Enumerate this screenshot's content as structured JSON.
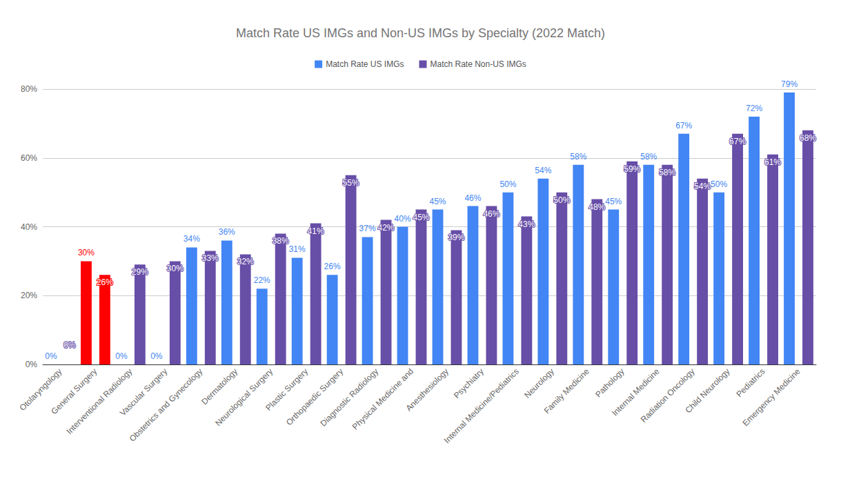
{
  "chart_data": {
    "type": "bar",
    "title": "Match Rate US IMGs and Non-US IMGs by Specialty (2022 Match)",
    "categories": [
      "Otolaryngology",
      "General Surgery",
      "Interventional Radiology",
      "Vascular Surgery",
      "Obstetrics and Gynecology",
      "Dermatology",
      "Neurological Surgery",
      "Plastic Surgery",
      "Orthopaedic Surgery",
      "Diagnostic Radiology",
      "Physical Medicine and",
      "Anesthesiology",
      "Psychiatry",
      "Internal Medicine/Pediatrics",
      "Neurology",
      "Family Medicine",
      "Pathology",
      "Internal Medicine",
      "Radiation Oncology",
      "Child Neurology",
      "Pediatrics",
      "Emergency Medicine"
    ],
    "series": [
      {
        "name": "Match Rate US IMGs",
        "color": "#4285f4",
        "colors": [
          "#4285f4",
          "#ff0000",
          "#4285f4",
          "#4285f4",
          "#4285f4",
          "#4285f4",
          "#4285f4",
          "#4285f4",
          "#4285f4",
          "#4285f4",
          "#4285f4",
          "#4285f4",
          "#4285f4",
          "#4285f4",
          "#4285f4",
          "#4285f4",
          "#4285f4",
          "#4285f4",
          "#4285f4",
          "#4285f4",
          "#4285f4",
          "#4285f4"
        ],
        "values": [
          0,
          30,
          0,
          0,
          34,
          36,
          22,
          31,
          26,
          37,
          40,
          45,
          46,
          50,
          54,
          58,
          45,
          58,
          67,
          50,
          72,
          79
        ],
        "value_labels": [
          "0%",
          "30%",
          "0%",
          "0%",
          "34%",
          "36%",
          "22%",
          "31%",
          "26%",
          "37%",
          "40%",
          "45%",
          "46%",
          "50%",
          "54%",
          "58%",
          "45%",
          "58%",
          "67%",
          "50%",
          "72%",
          "79%"
        ]
      },
      {
        "name": "Match Rate Non-US IMGs",
        "color": "#674ea7",
        "colors": [
          "#674ea7",
          "#ff0000",
          "#674ea7",
          "#674ea7",
          "#674ea7",
          "#674ea7",
          "#674ea7",
          "#674ea7",
          "#674ea7",
          "#674ea7",
          "#674ea7",
          "#674ea7",
          "#674ea7",
          "#674ea7",
          "#674ea7",
          "#674ea7",
          "#674ea7",
          "#674ea7",
          "#674ea7",
          "#674ea7",
          "#674ea7",
          "#674ea7"
        ],
        "values": [
          0,
          26,
          29,
          30,
          33,
          32,
          38,
          41,
          55,
          42,
          45,
          39,
          46,
          43,
          50,
          48,
          59,
          58,
          54,
          67,
          61,
          68
        ],
        "value_labels": [
          "0%",
          "26%",
          "29%",
          "30%",
          "33%",
          "32%",
          "38%",
          "41%",
          "55%",
          "42%",
          "45%",
          "39%",
          "46%",
          "43%",
          "50%",
          "48%",
          "59%",
          "58%",
          "54%",
          "67%",
          "61%",
          "68%"
        ]
      }
    ],
    "ylim": [
      0,
      80
    ],
    "yticks": [
      {
        "value": 0,
        "label": "0%"
      },
      {
        "value": 20,
        "label": "20%"
      },
      {
        "value": 40,
        "label": "40%"
      },
      {
        "value": 60,
        "label": "60%"
      },
      {
        "value": 80,
        "label": "80%"
      }
    ],
    "grid": true,
    "legend": "top",
    "data_labels": true
  }
}
